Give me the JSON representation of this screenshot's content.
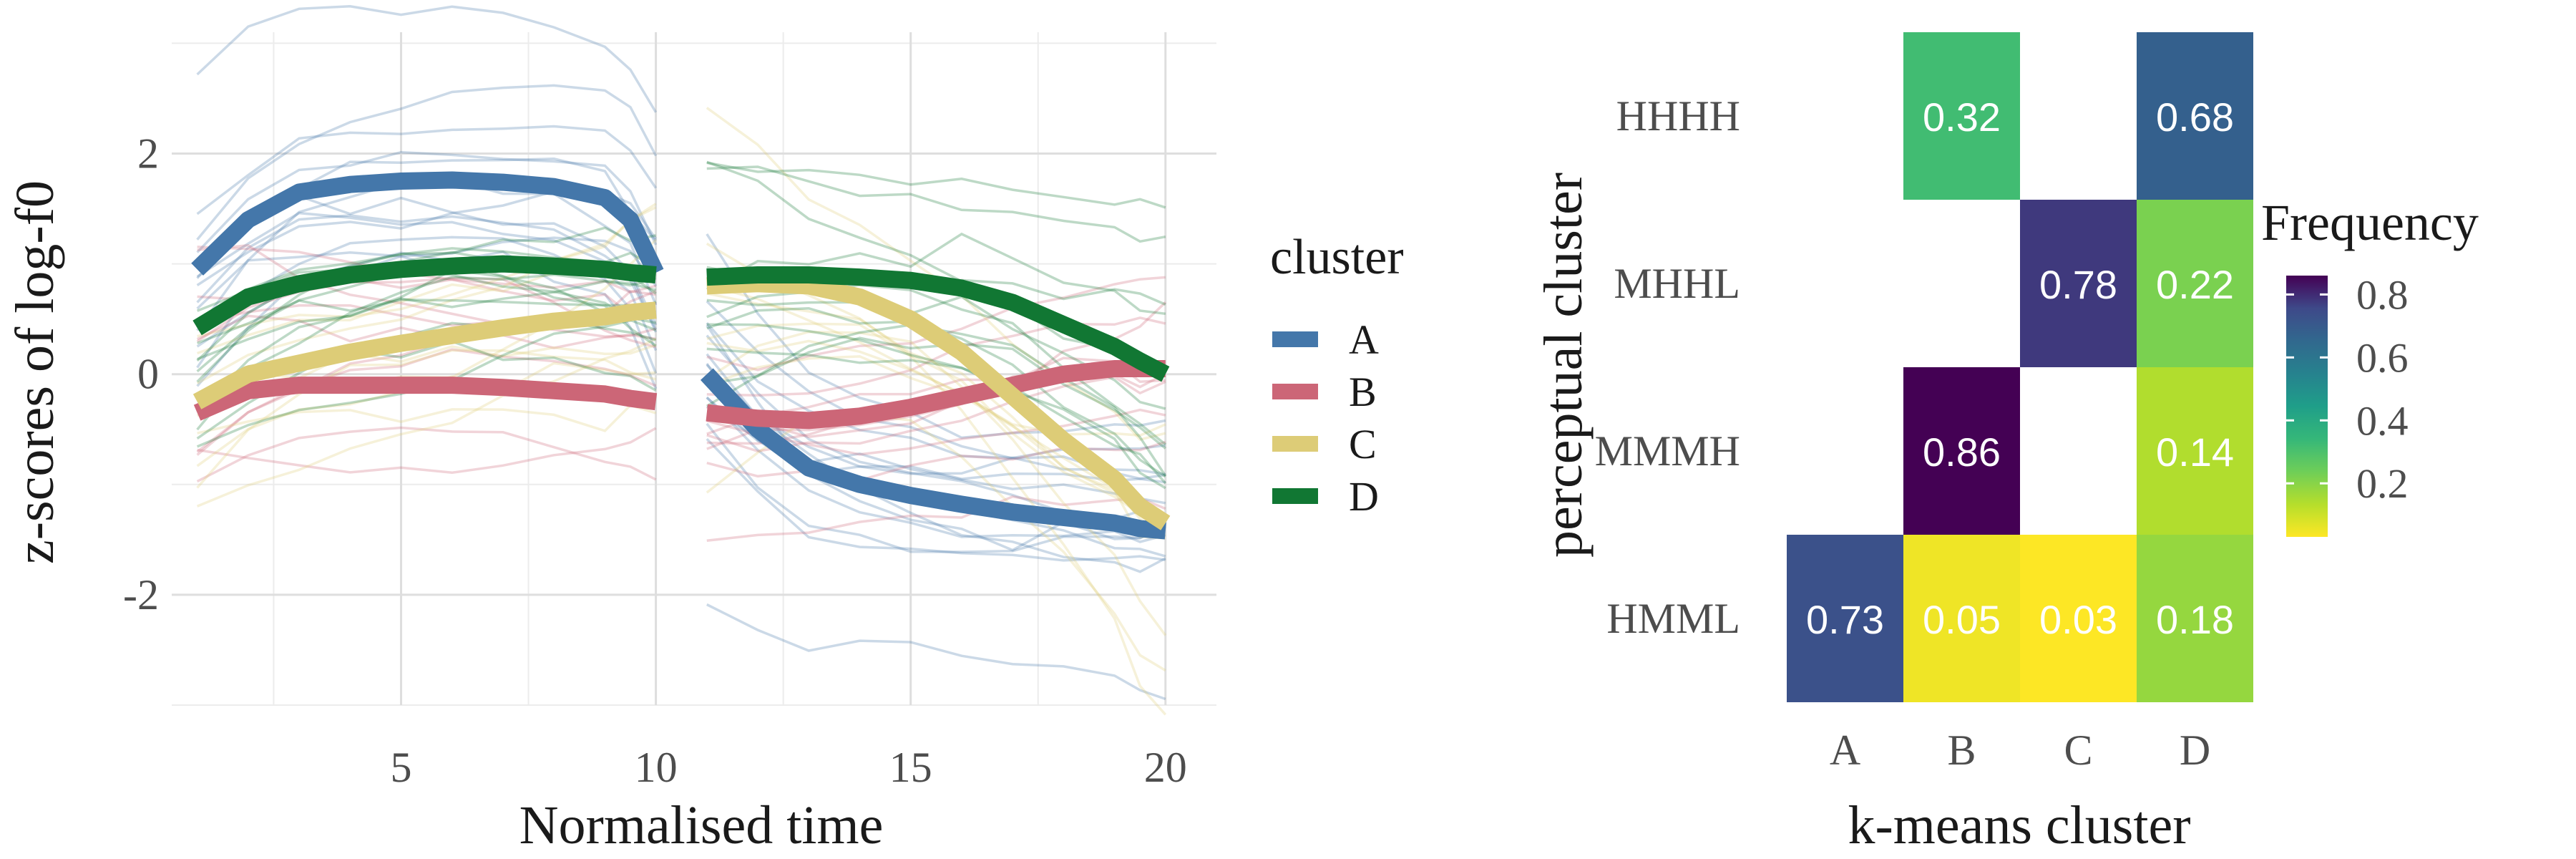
{
  "chart_data": [
    {
      "type": "line",
      "xlabel": "Normalised time",
      "ylabel": "z-scores of log-f0",
      "xlim": [
        0.5,
        21
      ],
      "ylim": [
        -3.0,
        3.1
      ],
      "x_ticks": [
        5,
        10,
        15,
        20
      ],
      "x_tick_labels": [
        "5",
        "10",
        "15",
        "20"
      ],
      "y_ticks": [
        -2,
        0,
        2
      ],
      "y_tick_labels": [
        "-2",
        "0",
        "2"
      ],
      "grid": true,
      "legend": {
        "title": "cluster",
        "placement": "right",
        "entries": [
          "A",
          "B",
          "C",
          "D"
        ]
      },
      "colors": {
        "A": "#4477AA",
        "B": "#CC6677",
        "C": "#DDCC77",
        "D": "#117733"
      },
      "segments": [
        {
          "x_start": 1,
          "x_end": 10
        },
        {
          "x_start": 11,
          "x_end": 20
        }
      ],
      "series": [
        {
          "name": "A",
          "segment1": [
            0.95,
            1.4,
            1.65,
            1.72,
            1.75,
            1.76,
            1.74,
            1.7,
            1.6,
            1.4,
            0.92
          ],
          "segment2": [
            0.0,
            -0.5,
            -0.85,
            -1.0,
            -1.1,
            -1.18,
            -1.25,
            -1.3,
            -1.35,
            -1.4,
            -1.42
          ],
          "x1": [
            1,
            2,
            3,
            4,
            5,
            6,
            7,
            8,
            9,
            9.5,
            10
          ],
          "x2": [
            11,
            12,
            13,
            14,
            15,
            16,
            17,
            18,
            19,
            19.5,
            20
          ]
        },
        {
          "name": "B",
          "segment1": [
            -0.35,
            -0.15,
            -0.1,
            -0.1,
            -0.1,
            -0.1,
            -0.12,
            -0.15,
            -0.18,
            -0.22,
            -0.25
          ],
          "segment2": [
            -0.35,
            -0.4,
            -0.42,
            -0.38,
            -0.3,
            -0.2,
            -0.1,
            0.0,
            0.05,
            0.05,
            0.05
          ],
          "x1": [
            1,
            2,
            3,
            4,
            5,
            6,
            7,
            8,
            9,
            9.5,
            10
          ],
          "x2": [
            11,
            12,
            13,
            14,
            15,
            16,
            17,
            18,
            19,
            19.5,
            20
          ]
        },
        {
          "name": "C",
          "segment1": [
            -0.25,
            0.0,
            0.1,
            0.2,
            0.28,
            0.35,
            0.42,
            0.48,
            0.52,
            0.56,
            0.58
          ],
          "segment2": [
            0.8,
            0.82,
            0.8,
            0.7,
            0.5,
            0.2,
            -0.2,
            -0.6,
            -0.95,
            -1.2,
            -1.35
          ],
          "x1": [
            1,
            2,
            3,
            4,
            5,
            6,
            7,
            8,
            9,
            9.5,
            10
          ],
          "x2": [
            11,
            12,
            13,
            14,
            15,
            16,
            17,
            18,
            19,
            19.5,
            20
          ]
        },
        {
          "name": "D",
          "segment1": [
            0.42,
            0.7,
            0.82,
            0.9,
            0.95,
            0.98,
            1.0,
            0.98,
            0.95,
            0.92,
            0.9
          ],
          "segment2": [
            0.88,
            0.9,
            0.9,
            0.88,
            0.85,
            0.78,
            0.65,
            0.45,
            0.25,
            0.12,
            0.0
          ],
          "x1": [
            1,
            2,
            3,
            4,
            5,
            6,
            7,
            8,
            9,
            9.5,
            10
          ],
          "x2": [
            11,
            12,
            13,
            14,
            15,
            16,
            17,
            18,
            19,
            19.5,
            20
          ]
        }
      ],
      "background_traces": "many thin translucent individual contours per cluster behind the mean lines"
    },
    {
      "type": "heatmap",
      "xlabel": "k-means cluster",
      "ylabel": "perceptual cluster",
      "x_categories": [
        "A",
        "B",
        "C",
        "D"
      ],
      "y_categories": [
        "HHHH",
        "MHHL",
        "MMMH",
        "HMML"
      ],
      "cells": [
        {
          "x": "B",
          "y": "HHHH",
          "value": 0.32,
          "label": "0.32"
        },
        {
          "x": "D",
          "y": "HHHH",
          "value": 0.68,
          "label": "0.68"
        },
        {
          "x": "C",
          "y": "MHHL",
          "value": 0.78,
          "label": "0.78"
        },
        {
          "x": "D",
          "y": "MHHL",
          "value": 0.22,
          "label": "0.22"
        },
        {
          "x": "B",
          "y": "MMMH",
          "value": 0.86,
          "label": "0.86"
        },
        {
          "x": "D",
          "y": "MMMH",
          "value": 0.14,
          "label": "0.14"
        },
        {
          "x": "A",
          "y": "HMML",
          "value": 0.73,
          "label": "0.73"
        },
        {
          "x": "B",
          "y": "HMML",
          "value": 0.05,
          "label": "0.05"
        },
        {
          "x": "C",
          "y": "HMML",
          "value": 0.03,
          "label": "0.03"
        },
        {
          "x": "D",
          "y": "HMML",
          "value": 0.18,
          "label": "0.18"
        }
      ],
      "colorbar": {
        "title": "Frequency",
        "range": [
          0.03,
          0.86
        ],
        "ticks": [
          0.2,
          0.4,
          0.6,
          0.8
        ],
        "tick_labels": [
          "0.2",
          "0.4",
          "0.6",
          "0.8"
        ],
        "colormap": "viridis (reversed: high=dark purple, low=yellow)",
        "placement": "right"
      }
    }
  ]
}
